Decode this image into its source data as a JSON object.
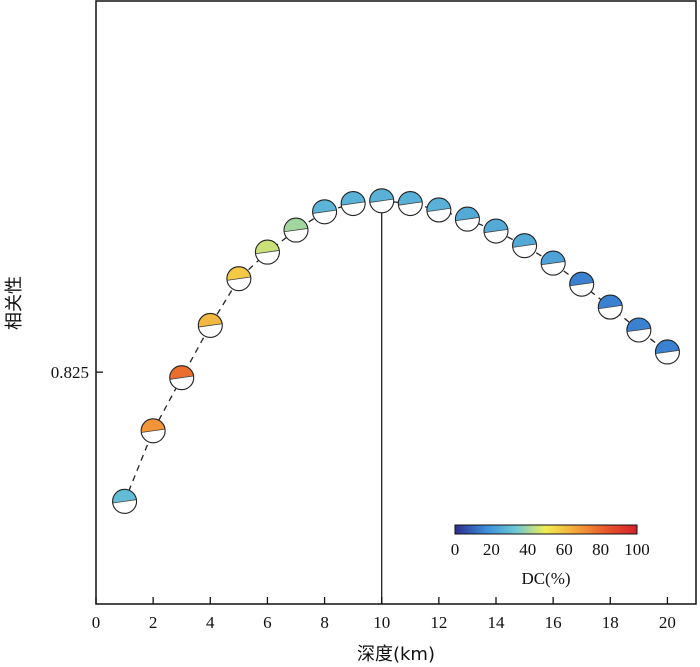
{
  "chart_data": {
    "type": "scatter",
    "xlabel": "深度(km)",
    "ylabel": "相关性",
    "x_ticks": [
      "0",
      "2",
      "4",
      "6",
      "8",
      "10",
      "12",
      "14",
      "16",
      "18",
      "20"
    ],
    "y_ticks": [
      "0.825"
    ],
    "xlim": [
      0,
      21
    ],
    "ylim": [
      0.7997,
      0.8655
    ],
    "best_depth": 10,
    "connector": "dashed",
    "x": [
      1,
      2,
      3,
      4,
      5,
      6,
      7,
      8,
      9,
      10,
      11,
      12,
      13,
      14,
      15,
      16,
      17,
      18,
      19,
      20
    ],
    "y": [
      0.8109,
      0.8186,
      0.8244,
      0.8301,
      0.8352,
      0.8381,
      0.8405,
      0.8425,
      0.8434,
      0.8437,
      0.8434,
      0.8427,
      0.8417,
      0.8404,
      0.8388,
      0.8369,
      0.8346,
      0.8321,
      0.8296,
      0.8272
    ],
    "dc": [
      30,
      70,
      78,
      62,
      58,
      45,
      40,
      28,
      27,
      27,
      27,
      27,
      25,
      25,
      25,
      23,
      15,
      15,
      15,
      15
    ],
    "colorbar": {
      "label": "DC(%)",
      "ticks": [
        "0",
        "20",
        "40",
        "60",
        "80",
        "100"
      ],
      "range": [
        0,
        100
      ],
      "colors": [
        "#2c2c8e",
        "#3b8bd8",
        "#6cc8d6",
        "#f2ec52",
        "#f4a43a",
        "#e8552a",
        "#d4202a"
      ]
    }
  }
}
